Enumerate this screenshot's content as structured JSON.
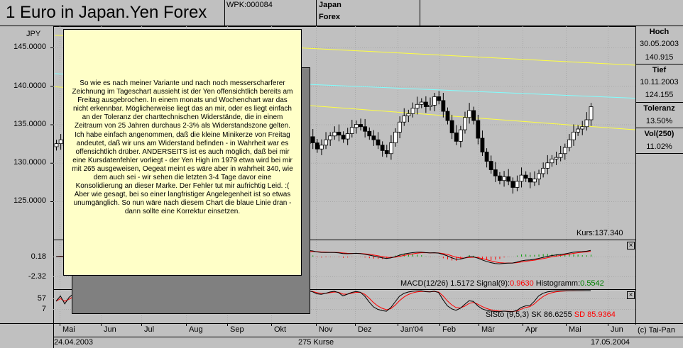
{
  "header": {
    "title": "1 Euro in Japan.Yen Forex",
    "wpk": "WPK:000084",
    "country": "Japan",
    "market": "Forex"
  },
  "stats": {
    "high_label": "Hoch",
    "high_date": "30.05.2003",
    "high_value": "140.915",
    "low_label": "Tief",
    "low_date": "10.11.2003",
    "low_value": "124.155",
    "tolerance_label": "Toleranz",
    "tolerance_value": "13.50%",
    "vol_label": "Vol(250)",
    "vol_value": "11.02%"
  },
  "main_chart": {
    "currency": "JPY",
    "y_ticks": [
      "145.0000",
      "140.0000",
      "135.0000",
      "130.0000",
      "125.0000"
    ],
    "kurs_label": "Kurs:137.340"
  },
  "macd": {
    "y_ticks": [
      "0.18",
      "-2.32"
    ],
    "label_prefix": "MACD(12/26) 1.5172 Signal(9):",
    "signal_value": "0.9630",
    "hist_label": " Histogramm:",
    "hist_value": "0.5542"
  },
  "slsto": {
    "y_ticks": [
      "57",
      "7"
    ],
    "label_prefix": "SlSto (9,5,3) SK 86.6255 ",
    "sd_label": "SD 85.9364"
  },
  "months": [
    "Mai",
    "Jun",
    "Jul",
    "Aug",
    "Sep",
    "Okt",
    "Nov",
    "Dez",
    "Jan'04",
    "Feb",
    "Mär",
    "Apr",
    "Mai",
    "Jun"
  ],
  "footer": {
    "start_date": "24.04.2003",
    "count": "275 Kurse",
    "end_date": "17.05.2004",
    "copyright": "(c) Tai-Pan"
  },
  "note": {
    "text": "So wie es nach meiner Variante und nach noch messerscharferer Zeichnung im Tageschart aussieht ist der Yen offensichtlich bereits am Freitag ausgebrochen. In einem monats und Wochenchart war das nicht erkennbar. Möglicherweise liegt das an mir, oder es liegt einfach an der Toleranz der charttechnischen Widerstände, die in einem Zeitraum von 25 Jahren durchaus 2-3% als Widerstandszone gelten. Ich habe einfach angenommen, daß die kleine Minikerze von Freitag andeutet, daß wir uns am Widerstand befinden - in Wahrheit war es offensichtlich drüber. ANDERSEITS ist es auch möglich, daß bei mir eine Kursdatenfehler vorliegt - der Yen High im 1979 etwa wird bei mir mit 265 ausgeweisen, Oegeat meint es wäre aber in wahrheit 340, wie dem auch sei - wir sehen die letzten 3-4 Tage davor eine Konsolidierung an dieser Marke. Der Fehler tut mir aufrichtig Leid. :( Aber wie gesagt, bei so einer langfristiger Angelegenheit ist so etwas unumgänglich. So nun wäre nach diesem Chart die blaue Linie dran - dann sollte eine Korrektur einsetzen."
  },
  "colors": {
    "background": "#c0c0c0",
    "grid": "#a8a8a8",
    "yellow_line": "#ffff40",
    "cyan_line": "#80ffff",
    "macd_line": "#000000",
    "signal_line": "#ff0000",
    "hist_positive": "#00a000",
    "hist_negative": "#ff0000",
    "note_bg": "#ffffc8"
  },
  "chart_data": {
    "type": "candlestick",
    "x_range": [
      "24.04.2003",
      "17.05.2004"
    ],
    "y_unit": "JPY",
    "ylim": [
      122,
      148
    ],
    "closes": [
      132.5,
      133.0,
      132.2,
      133.6,
      134.1,
      135.0,
      134.6,
      136.0,
      137.5,
      138.4,
      139.6,
      140.9,
      138.8,
      137.2,
      136.1,
      135.4,
      134.5,
      133.2,
      134.0,
      134.9,
      135.6,
      136.1,
      134.7,
      133.6,
      132.4,
      131.5,
      130.4,
      131.2,
      132.3,
      133.4,
      134.0,
      133.1,
      132.0,
      130.8,
      129.6,
      128.4,
      127.8,
      127.2,
      126.9,
      126.2,
      125.7,
      126.8,
      127.4,
      128.2,
      127.0,
      126.1,
      125.2,
      124.6,
      124.2,
      125.1,
      126.0,
      126.9,
      127.9,
      128.8,
      129.6,
      130.4,
      131.4,
      132.5,
      133.4,
      132.6,
      131.8,
      132.3,
      133.0,
      133.5,
      134.0,
      133.6,
      133.1,
      133.8,
      134.6,
      135.0,
      134.7,
      134.1,
      133.5,
      133.0,
      132.3,
      131.6,
      131.2,
      132.6,
      134.0,
      135.3,
      136.1,
      136.4,
      137.1,
      137.6,
      137.9,
      137.3,
      137.5,
      138.6,
      138.1,
      136.7,
      135.5,
      133.9,
      132.8,
      134.3,
      135.9,
      136.8,
      135.5,
      133.2,
      131.4,
      130.2,
      129.1,
      128.3,
      127.7,
      128.2,
      127.6,
      126.8,
      127.6,
      128.4,
      128.0,
      127.5,
      127.9,
      128.6,
      129.3,
      130.0,
      130.5,
      130.7,
      131.2,
      132.0,
      133.0,
      134.0,
      134.4,
      134.7,
      135.6,
      137.3
    ],
    "trend_lines": [
      {
        "color": "yellow",
        "from": [
          0,
          146.6
        ],
        "to": [
          1,
          142.7
        ]
      },
      {
        "color": "cyan",
        "from": [
          0,
          141.6
        ],
        "to": [
          1,
          138.4
        ]
      },
      {
        "color": "yellow",
        "from": [
          0,
          139.9
        ],
        "to": [
          1,
          134.3
        ]
      }
    ],
    "last_close": 137.34
  }
}
